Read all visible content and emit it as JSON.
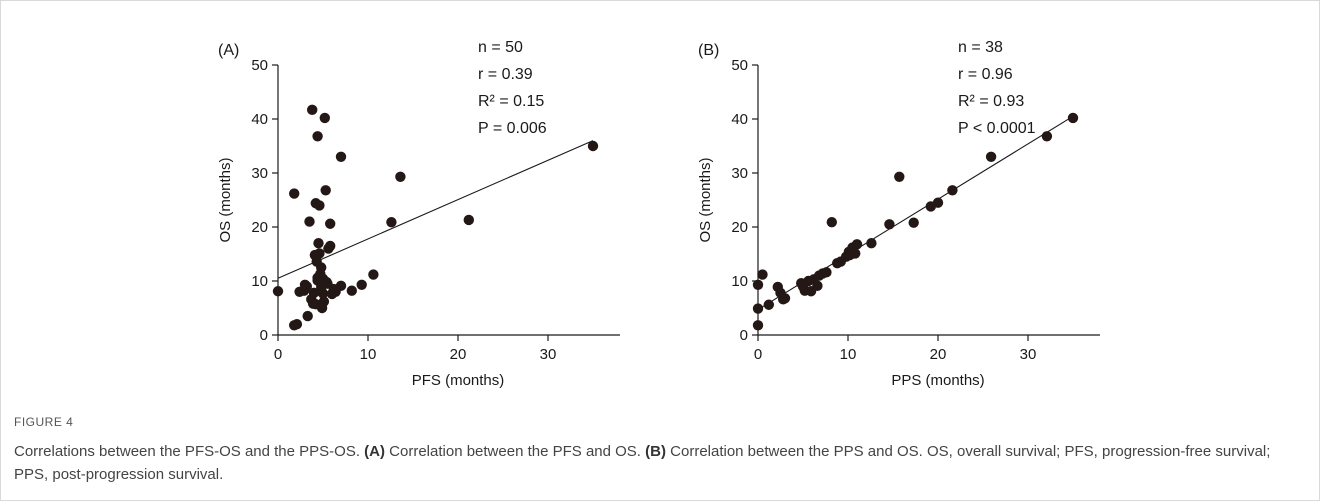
{
  "chart_data": [
    {
      "type": "scatter",
      "panel_label": "(A)",
      "xlabel": "PFS (months)",
      "ylabel": "OS (months)",
      "xlim": [
        0,
        40
      ],
      "ylim": [
        0,
        50
      ],
      "xticks": [
        "0",
        "10",
        "20",
        "30",
        "40"
      ],
      "yticks": [
        "0",
        "10",
        "20",
        "30",
        "40",
        "50"
      ],
      "stats": [
        "n = 50",
        "r = 0.39",
        "R² = 0.15",
        "P = 0.006"
      ],
      "fit_line": [
        [
          0,
          10.5
        ],
        [
          35,
          36
        ]
      ],
      "points": [
        [
          0,
          8.1
        ],
        [
          1.8,
          26.2
        ],
        [
          1.8,
          1.8
        ],
        [
          2.1,
          2.0
        ],
        [
          2.4,
          8.0
        ],
        [
          2.9,
          8.2
        ],
        [
          3.0,
          9.3
        ],
        [
          3.3,
          3.5
        ],
        [
          3.5,
          21.0
        ],
        [
          3.7,
          6.6
        ],
        [
          3.8,
          41.7
        ],
        [
          3.9,
          5.8
        ],
        [
          4.1,
          14.8
        ],
        [
          4.2,
          24.4
        ],
        [
          4.3,
          13.6
        ],
        [
          4.4,
          36.8
        ],
        [
          4.4,
          10.6
        ],
        [
          4.5,
          17.0
        ],
        [
          4.6,
          24.0
        ],
        [
          4.6,
          15.1
        ],
        [
          4.7,
          11.3
        ],
        [
          4.8,
          8.9
        ],
        [
          4.9,
          5.0
        ],
        [
          5.0,
          10.4
        ],
        [
          5.0,
          7.7
        ],
        [
          5.2,
          40.2
        ],
        [
          5.3,
          26.8
        ],
        [
          5.4,
          9.8
        ],
        [
          5.6,
          16.0
        ],
        [
          5.8,
          16.5
        ],
        [
          5.8,
          20.6
        ],
        [
          6.0,
          7.6
        ],
        [
          6.2,
          8.5
        ],
        [
          7.0,
          33.0
        ],
        [
          7.0,
          9.1
        ],
        [
          8.2,
          8.2
        ],
        [
          9.3,
          9.3
        ],
        [
          10.6,
          11.2
        ],
        [
          12.6,
          20.9
        ],
        [
          13.6,
          29.3
        ],
        [
          21.2,
          21.3
        ],
        [
          35.0,
          35.0
        ],
        [
          4.2,
          5.7
        ],
        [
          5.5,
          9.5
        ],
        [
          3.2,
          9.0
        ],
        [
          6.4,
          8.0
        ],
        [
          4.8,
          12.5
        ],
        [
          4.0,
          7.8
        ],
        [
          5.1,
          6.2
        ],
        [
          4.4,
          10.1
        ]
      ]
    },
    {
      "type": "scatter",
      "panel_label": "(B)",
      "xlabel": "PPS (months)",
      "ylabel": "OS (months)",
      "xlim": [
        0,
        40
      ],
      "ylim": [
        0,
        50
      ],
      "xticks": [
        "0",
        "10",
        "20",
        "30",
        "40"
      ],
      "yticks": [
        "0",
        "10",
        "20",
        "30",
        "40",
        "50"
      ],
      "stats": [
        "n = 38",
        "r = 0.96",
        "R² = 0.93",
        "P < 0.0001"
      ],
      "fit_line": [
        [
          0,
          4.7
        ],
        [
          35,
          40.5
        ]
      ],
      "points": [
        [
          0,
          9.3
        ],
        [
          0,
          4.9
        ],
        [
          0,
          1.8
        ],
        [
          0.5,
          11.2
        ],
        [
          1.2,
          5.6
        ],
        [
          2.2,
          8.9
        ],
        [
          2.5,
          7.8
        ],
        [
          2.8,
          6.6
        ],
        [
          4.8,
          9.6
        ],
        [
          5.2,
          8.2
        ],
        [
          5.6,
          10.0
        ],
        [
          5.9,
          8.1
        ],
        [
          6.2,
          10.3
        ],
        [
          6.6,
          9.1
        ],
        [
          6.8,
          11.0
        ],
        [
          7.2,
          11.4
        ],
        [
          8.2,
          20.9
        ],
        [
          8.8,
          13.3
        ],
        [
          9.2,
          13.6
        ],
        [
          9.8,
          14.5
        ],
        [
          10.1,
          15.4
        ],
        [
          10.5,
          16.2
        ],
        [
          10.8,
          15.1
        ],
        [
          11.0,
          16.8
        ],
        [
          12.6,
          17.0
        ],
        [
          14.6,
          20.5
        ],
        [
          15.7,
          29.3
        ],
        [
          17.3,
          20.8
        ],
        [
          19.2,
          23.8
        ],
        [
          20.0,
          24.5
        ],
        [
          21.6,
          26.8
        ],
        [
          25.9,
          33.0
        ],
        [
          32.1,
          36.8
        ],
        [
          35.0,
          40.2
        ],
        [
          5.0,
          9.0
        ],
        [
          3.0,
          6.8
        ],
        [
          7.6,
          11.6
        ],
        [
          10.2,
          14.8
        ]
      ]
    }
  ],
  "figure": {
    "label": "FIGURE 4",
    "caption_intro": "Correlations between the PFS-OS and the PPS-OS. ",
    "caption_a_tag": "(A)",
    "caption_a_text": " Correlation between the PFS and OS. ",
    "caption_b_tag": "(B)",
    "caption_b_text": " Correlation between the PPS and OS. OS, overall survival; PFS, progression-free survival; PPS, post-progression survival."
  },
  "colors": {
    "point": "#231815",
    "axis": "#1a1a1a"
  }
}
